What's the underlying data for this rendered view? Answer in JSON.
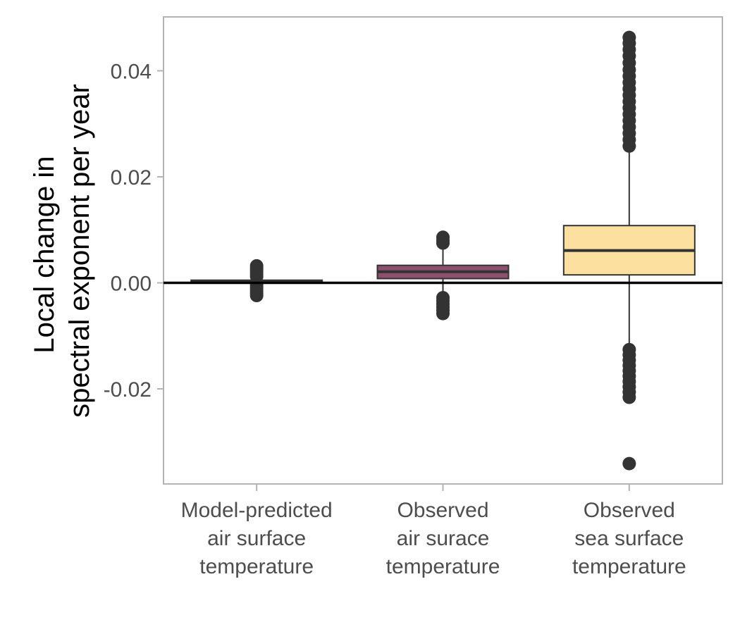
{
  "chart_data": {
    "type": "box",
    "title": "",
    "xlabel": "",
    "ylabel": [
      "Local change in",
      "spectral exponent per year"
    ],
    "ylim": [
      -0.038,
      0.05
    ],
    "yticks": [
      -0.02,
      0.0,
      0.02,
      0.04
    ],
    "ytick_labels": [
      "-0.02",
      "0.00",
      "0.02",
      "0.04"
    ],
    "reference_line_y": 0,
    "grid": false,
    "legend": "none",
    "colors": {
      "panel_border": "#b3b3b3",
      "box_outline": "#333333",
      "points": "#333333",
      "reference_line": "#000000"
    },
    "categories": [
      {
        "label": [
          "Model-predicted",
          "air surface",
          "temperature"
        ],
        "fill": "#d9d9d9",
        "q1": 0.0001,
        "median": 0.0003,
        "q3": 0.0005,
        "whisker_low": 0.0,
        "whisker_high": 0.0008,
        "outliers": [
          0.0032,
          0.0028,
          0.0024,
          0.002,
          0.0016,
          0.0012,
          -0.0004,
          -0.0008,
          -0.0012,
          -0.0016,
          -0.002,
          -0.0024
        ]
      },
      {
        "label": [
          "Observed",
          "air surace",
          "temperature"
        ],
        "fill": "#8c4f6c",
        "q1": 0.0008,
        "median": 0.0021,
        "q3": 0.0033,
        "whisker_low": -0.0022,
        "whisker_high": 0.0072,
        "outliers": [
          0.0086,
          0.008,
          0.0075,
          -0.0028,
          -0.0034,
          -0.004,
          -0.0046,
          -0.0052,
          -0.0058
        ]
      },
      {
        "label": [
          "Observed",
          "sea surface",
          "temperature"
        ],
        "fill": "#fce0a0",
        "q1": 0.0015,
        "median": 0.0061,
        "q3": 0.0108,
        "whisker_low": -0.012,
        "whisker_high": 0.025,
        "outliers": [
          0.0463,
          0.0452,
          0.044,
          0.0428,
          0.0415,
          0.0402,
          0.039,
          0.0378,
          0.0366,
          0.0354,
          0.0342,
          0.033,
          0.0318,
          0.0306,
          0.0294,
          0.0282,
          0.027,
          0.0258,
          -0.0126,
          -0.0136,
          -0.0146,
          -0.0156,
          -0.0166,
          -0.0176,
          -0.0186,
          -0.0196,
          -0.0206,
          -0.0216,
          -0.0341
        ]
      }
    ]
  }
}
